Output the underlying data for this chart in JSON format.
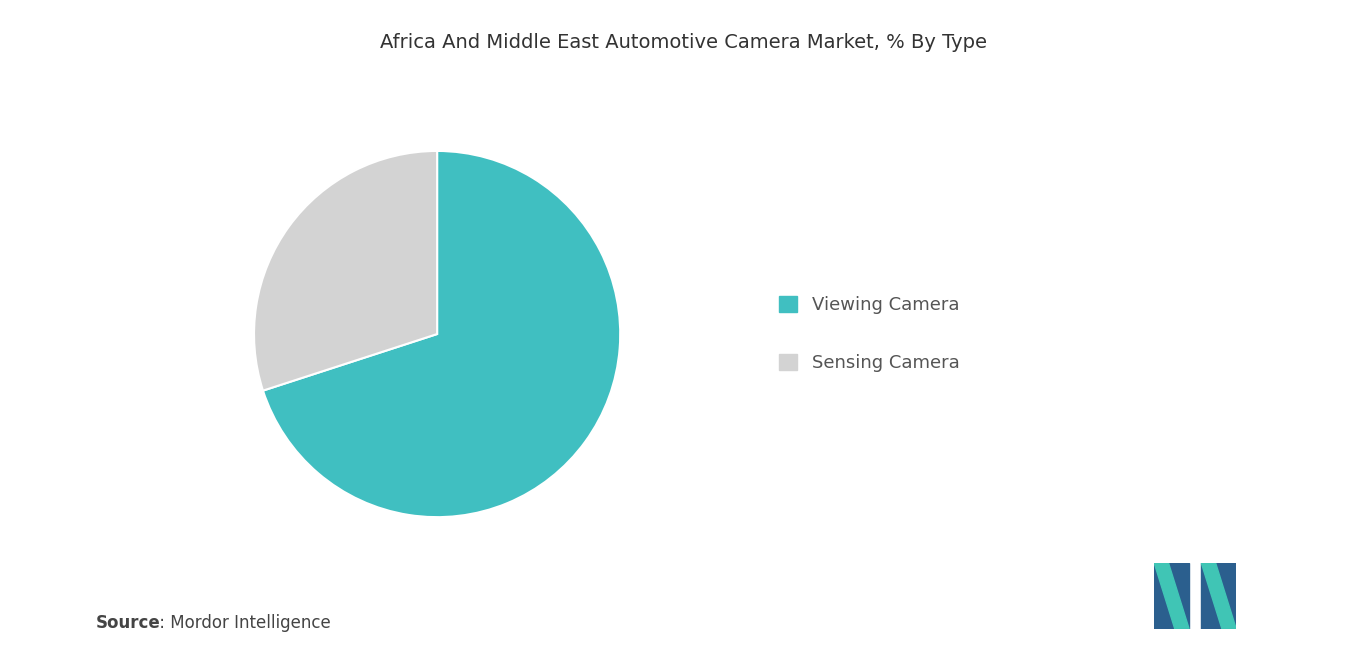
{
  "title": "Africa And Middle East Automotive Camera Market, % By Type",
  "slices": [
    70,
    30
  ],
  "labels": [
    "Viewing Camera",
    "Sensing Camera"
  ],
  "colors": [
    "#40BFC1",
    "#D3D3D3"
  ],
  "startangle": 90,
  "source_bold": "Source",
  "source_normal": " : Mordor Intelligence",
  "background_color": "#FFFFFF",
  "title_fontsize": 14,
  "legend_fontsize": 13,
  "source_fontsize": 12,
  "legend_text_color": "#555555",
  "title_color": "#333333",
  "source_color": "#444444"
}
